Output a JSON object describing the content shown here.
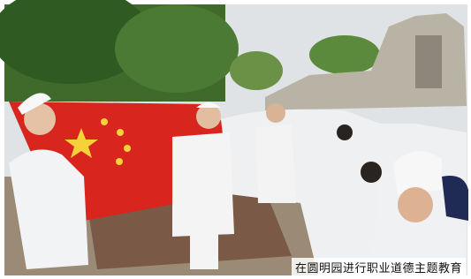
{
  "caption": "在圆明园进行职业道德主题教育"
}
